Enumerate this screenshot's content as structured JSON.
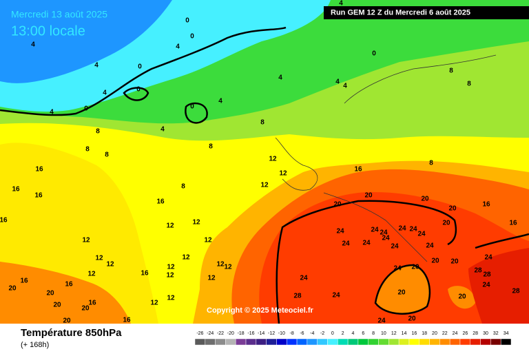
{
  "header": {
    "date": "Mercredi 13 août 2025",
    "time": "13:00 locale",
    "run": "Run GEM 12 Z du Mercredi 6 août 2025"
  },
  "footer": {
    "parameter": "Température 850hPa",
    "lead": "(+ 168h)",
    "copyright": "Copyright © 2025 Meteociel.fr"
  },
  "color_scale": {
    "values": [
      -26,
      -24,
      -22,
      -20,
      -18,
      -16,
      -14,
      -12,
      -10,
      -8,
      -6,
      -4,
      -2,
      0,
      2,
      4,
      6,
      8,
      10,
      12,
      14,
      16,
      18,
      20,
      22,
      24,
      26,
      28,
      30,
      32,
      34
    ],
    "colors": [
      "#5a5a5a",
      "#6e6e6e",
      "#8c8c8c",
      "#b4b4b4",
      "#7a3c96",
      "#5a2d8c",
      "#3c1e82",
      "#1e1e96",
      "#0000c8",
      "#0032ff",
      "#0064ff",
      "#1e96ff",
      "#32c8ff",
      "#46f0ff",
      "#00dcb4",
      "#00c878",
      "#00c83c",
      "#32d232",
      "#64dc32",
      "#a0e632",
      "#dcf01e",
      "#ffff00",
      "#ffdc00",
      "#ffb400",
      "#ff8c00",
      "#ff6400",
      "#ff3c00",
      "#e61e00",
      "#b40000",
      "#780000",
      "#000000"
    ]
  },
  "contour_labels": [
    0,
    0,
    4,
    4,
    4,
    0,
    0,
    4,
    0,
    4,
    0,
    4,
    4,
    8,
    8,
    8,
    8,
    8,
    4,
    4,
    4,
    0,
    8,
    8,
    4,
    12,
    12,
    12,
    8,
    16,
    8,
    16,
    16,
    16,
    16,
    16,
    12,
    12,
    12,
    12,
    12,
    12,
    12,
    12,
    12,
    12,
    12,
    16,
    12,
    12,
    12,
    12,
    16,
    20,
    16,
    20,
    20,
    16,
    20,
    16,
    20,
    20,
    20,
    20,
    20,
    16,
    16,
    20,
    24,
    24,
    24,
    24,
    24,
    24,
    24,
    24,
    24,
    24,
    24,
    24,
    28,
    28,
    20,
    20,
    24,
    20,
    24,
    24,
    28,
    24,
    20,
    20,
    24,
    28,
    20
  ]
}
